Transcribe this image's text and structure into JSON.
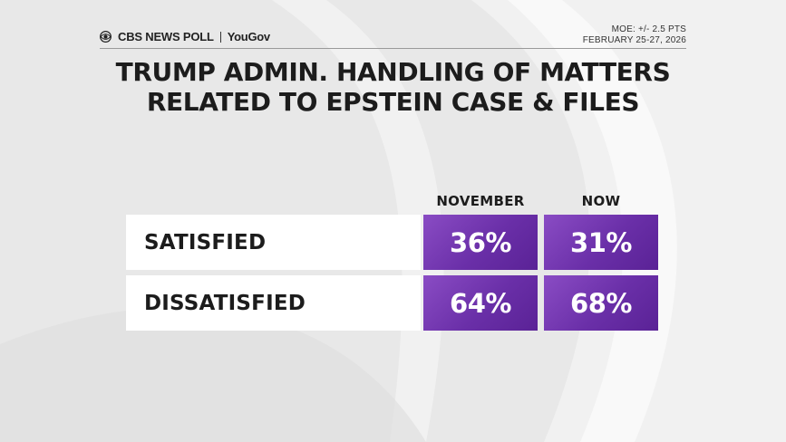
{
  "brand": {
    "network": "CBS NEWS POLL",
    "partner": "YouGov"
  },
  "meta": {
    "moe": "MOE: +/- 2.5 PTS",
    "dates": "FEBRUARY 25-27, 2026"
  },
  "title_lines": [
    "TRUMP ADMIN. HANDLING OF MATTERS",
    "RELATED TO EPSTEIN CASE & FILES"
  ],
  "colors": {
    "accent": "#6a2fa8",
    "background": "#e7e7e7"
  },
  "chart_data": {
    "type": "table",
    "title": "TRUMP ADMIN. HANDLING OF MATTERS RELATED TO EPSTEIN CASE & FILES",
    "columns": [
      "NOVEMBER",
      "NOW"
    ],
    "rows": [
      {
        "label": "SATISFIED",
        "values": [
          36,
          31
        ],
        "display": [
          "36%",
          "31%"
        ]
      },
      {
        "label": "DISSATISFIED",
        "values": [
          64,
          68
        ],
        "display": [
          "64%",
          "68%"
        ]
      }
    ],
    "unit": "%"
  }
}
